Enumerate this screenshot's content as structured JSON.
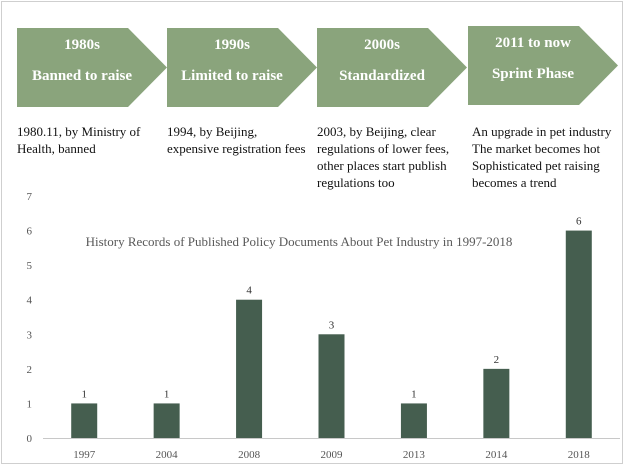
{
  "phases": [
    {
      "era": "1980s",
      "name": "Banned to raise",
      "desc": "1980.11, by Ministry of Health, banned"
    },
    {
      "era": "1990s",
      "name": "Limited to raise",
      "desc": "1994, by Beijing, expensive registration fees"
    },
    {
      "era": "2000s",
      "name": "Standardized",
      "desc": "2003, by Beijing, clear regulations of lower fees, other places start publish regulations too"
    },
    {
      "era": "2011 to now",
      "name": "Sprint Phase",
      "desc": "An upgrade in pet industry The market becomes hot Sophisticated pet raising becomes a trend"
    }
  ],
  "colors": {
    "arrow": "#8aa47c",
    "bar": "#455e4f"
  },
  "chart_data": {
    "type": "bar",
    "title": "History Records of Published Policy Documents About Pet Industry in 1997-2018",
    "categories": [
      "1997",
      "2004",
      "2008",
      "2009",
      "2013",
      "2014",
      "2018"
    ],
    "values": [
      1,
      1,
      4,
      3,
      1,
      2,
      6
    ],
    "xlabel": "",
    "ylabel": "",
    "ylim": [
      0,
      7
    ],
    "yticks": [
      0,
      1,
      2,
      3,
      4,
      5,
      6,
      7
    ],
    "grid": false,
    "legend": "none",
    "data_labels": true
  }
}
